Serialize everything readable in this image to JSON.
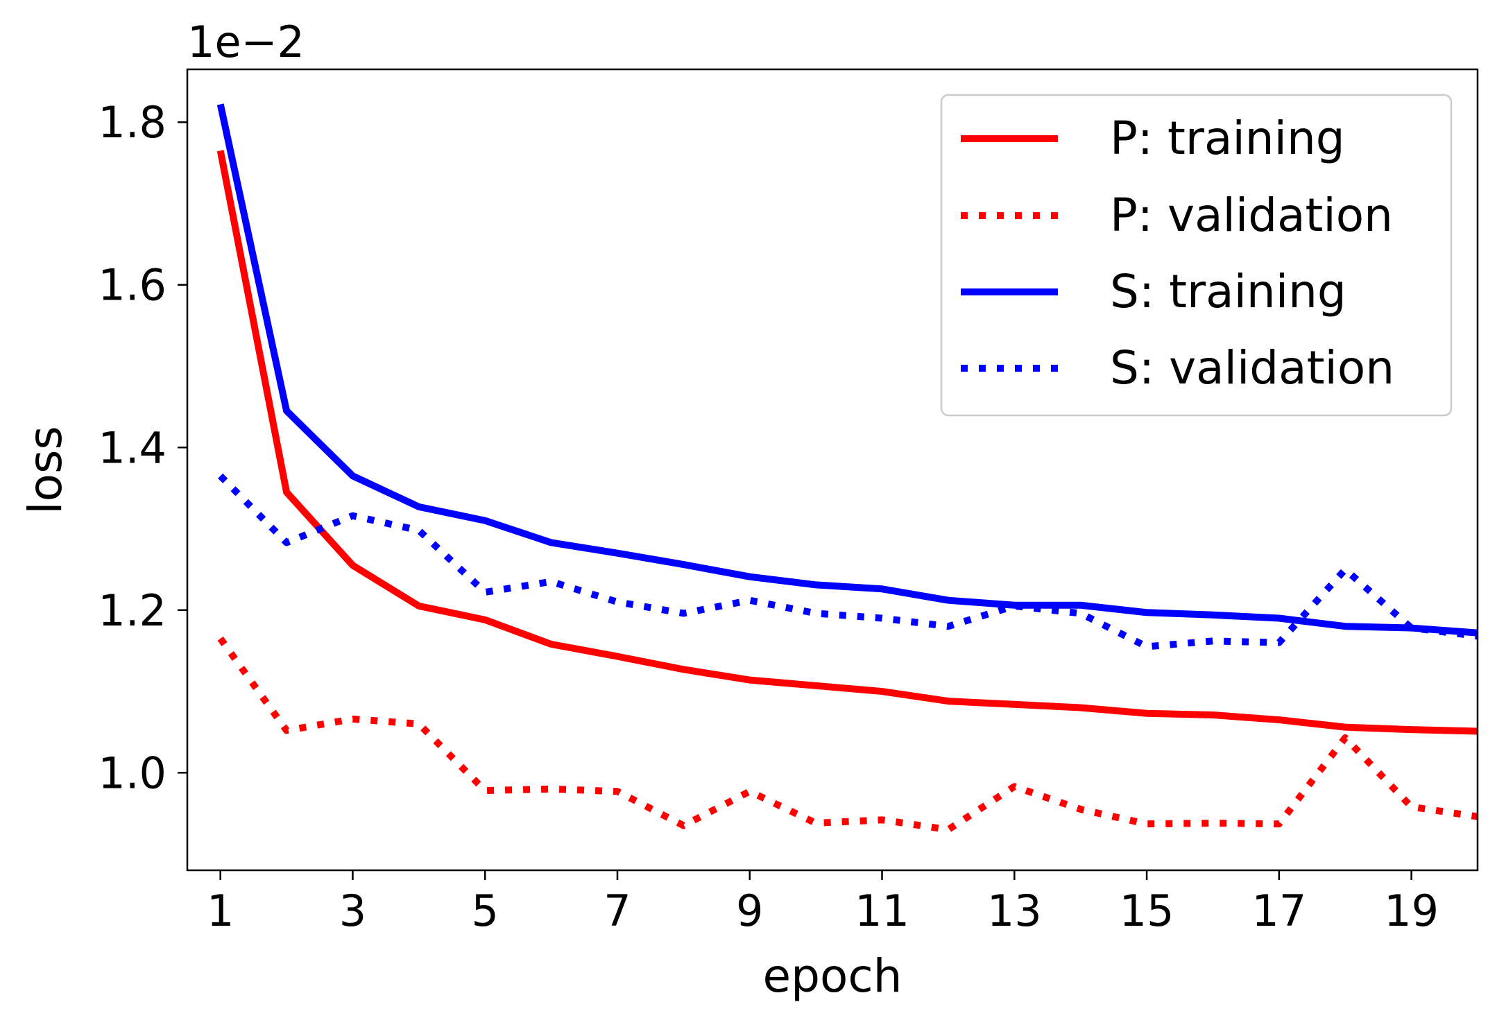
{
  "chart_data": {
    "type": "line",
    "title": "",
    "scale_label": "1e−2",
    "xlabel": "epoch",
    "ylabel": "loss",
    "x": [
      1,
      2,
      3,
      4,
      5,
      6,
      7,
      8,
      9,
      10,
      11,
      12,
      13,
      14,
      15,
      16,
      17,
      18,
      19,
      20
    ],
    "xlim": [
      0.5,
      20
    ],
    "ylim": [
      0.88,
      1.865
    ],
    "x_ticks": [
      1,
      3,
      5,
      7,
      9,
      11,
      13,
      15,
      17,
      19
    ],
    "x_tick_labels": [
      "1",
      "3",
      "5",
      "7",
      "9",
      "11",
      "13",
      "15",
      "17",
      "19"
    ],
    "y_ticks": [
      1.0,
      1.2,
      1.4,
      1.6,
      1.8
    ],
    "y_tick_labels": [
      "1.0",
      "1.2",
      "1.4",
      "1.6",
      "1.8"
    ],
    "grid": false,
    "legend_position": "top-right",
    "series": [
      {
        "name": "P: training",
        "color": "#ff0000",
        "style": "solid",
        "values": [
          1.765,
          1.345,
          1.255,
          1.205,
          1.188,
          1.158,
          1.143,
          1.127,
          1.114,
          1.107,
          1.1,
          1.088,
          1.084,
          1.08,
          1.073,
          1.071,
          1.065,
          1.056,
          1.053,
          1.051
        ]
      },
      {
        "name": "P: validation",
        "color": "#ff0000",
        "style": "dotted",
        "values": [
          1.165,
          1.052,
          1.066,
          1.06,
          0.978,
          0.98,
          0.977,
          0.935,
          0.977,
          0.938,
          0.942,
          0.93,
          0.983,
          0.955,
          0.937,
          0.938,
          0.937,
          1.043,
          0.958,
          0.946
        ]
      },
      {
        "name": "S: training",
        "color": "#0000ff",
        "style": "solid",
        "values": [
          1.822,
          1.445,
          1.365,
          1.327,
          1.31,
          1.283,
          1.27,
          1.256,
          1.241,
          1.231,
          1.226,
          1.212,
          1.206,
          1.206,
          1.197,
          1.194,
          1.19,
          1.18,
          1.178,
          1.172
        ]
      },
      {
        "name": "S: validation",
        "color": "#0000ff",
        "style": "dotted",
        "values": [
          1.365,
          1.283,
          1.316,
          1.298,
          1.222,
          1.235,
          1.21,
          1.196,
          1.212,
          1.196,
          1.19,
          1.18,
          1.205,
          1.196,
          1.155,
          1.162,
          1.16,
          1.25,
          1.178,
          1.168
        ]
      }
    ]
  }
}
